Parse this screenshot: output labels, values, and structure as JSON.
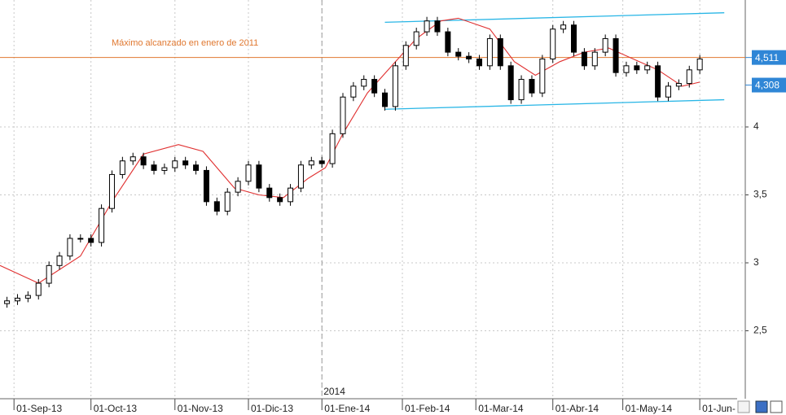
{
  "chart_data": {
    "type": "candlestick",
    "x": [
      2,
      5,
      8,
      11,
      14,
      17,
      20,
      23,
      26,
      29,
      32,
      35,
      38,
      41,
      44,
      47,
      50,
      53,
      56,
      59,
      62,
      65,
      68,
      71,
      74,
      77,
      80,
      83,
      86,
      89,
      92,
      95,
      98,
      101,
      104,
      107,
      110,
      113,
      116,
      119,
      122,
      125,
      128,
      131,
      134,
      137,
      140,
      143,
      146,
      149,
      152,
      155,
      158,
      161,
      164,
      167,
      170,
      173,
      176,
      179,
      182,
      185,
      188,
      191,
      194,
      197,
      200
    ],
    "open": [
      2.7,
      2.72,
      2.74,
      2.76,
      2.85,
      2.98,
      3.05,
      3.18,
      3.18,
      3.15,
      3.4,
      3.65,
      3.75,
      3.78,
      3.72,
      3.68,
      3.7,
      3.75,
      3.72,
      3.68,
      3.45,
      3.38,
      3.52,
      3.6,
      3.72,
      3.55,
      3.48,
      3.45,
      3.55,
      3.72,
      3.75,
      3.73,
      3.95,
      4.22,
      4.3,
      4.35,
      4.25,
      4.15,
      4.45,
      4.6,
      4.7,
      4.78,
      4.7,
      4.55,
      4.52,
      4.5,
      4.45,
      4.65,
      4.45,
      4.2,
      4.35,
      4.25,
      4.5,
      4.72,
      4.75,
      4.55,
      4.45,
      4.55,
      4.65,
      4.4,
      4.45,
      4.42,
      4.45,
      4.22,
      4.3,
      4.32,
      4.42
    ],
    "high": [
      2.75,
      2.77,
      2.79,
      2.88,
      3.01,
      3.08,
      3.21,
      3.21,
      3.21,
      3.43,
      3.68,
      3.78,
      3.81,
      3.81,
      3.75,
      3.73,
      3.78,
      3.78,
      3.75,
      3.71,
      3.48,
      3.55,
      3.63,
      3.75,
      3.75,
      3.58,
      3.51,
      3.58,
      3.75,
      3.78,
      3.78,
      3.98,
      4.25,
      4.33,
      4.38,
      4.38,
      4.28,
      4.48,
      4.63,
      4.73,
      4.81,
      4.81,
      4.73,
      4.58,
      4.55,
      4.53,
      4.68,
      4.68,
      4.48,
      4.38,
      4.38,
      4.53,
      4.75,
      4.78,
      4.78,
      4.58,
      4.58,
      4.68,
      4.68,
      4.48,
      4.48,
      4.48,
      4.48,
      4.33,
      4.35,
      4.45,
      4.53
    ],
    "low": [
      2.67,
      2.69,
      2.71,
      2.73,
      2.82,
      2.95,
      3.02,
      3.15,
      3.12,
      3.12,
      3.37,
      3.62,
      3.72,
      3.69,
      3.65,
      3.65,
      3.67,
      3.69,
      3.65,
      3.42,
      3.35,
      3.35,
      3.49,
      3.57,
      3.52,
      3.45,
      3.42,
      3.42,
      3.52,
      3.69,
      3.7,
      3.7,
      3.92,
      4.19,
      4.27,
      4.22,
      4.12,
      4.12,
      4.42,
      4.57,
      4.67,
      4.67,
      4.52,
      4.49,
      4.47,
      4.42,
      4.42,
      4.42,
      4.17,
      4.17,
      4.22,
      4.22,
      4.47,
      4.69,
      4.52,
      4.42,
      4.42,
      4.52,
      4.37,
      4.37,
      4.39,
      4.39,
      4.19,
      4.19,
      4.27,
      4.29,
      4.39
    ],
    "close": [
      2.72,
      2.74,
      2.76,
      2.85,
      2.98,
      3.05,
      3.18,
      3.18,
      3.15,
      3.4,
      3.65,
      3.75,
      3.78,
      3.72,
      3.68,
      3.7,
      3.75,
      3.72,
      3.68,
      3.45,
      3.38,
      3.52,
      3.6,
      3.72,
      3.55,
      3.48,
      3.45,
      3.55,
      3.72,
      3.75,
      3.73,
      3.95,
      4.22,
      4.3,
      4.35,
      4.25,
      4.15,
      4.45,
      4.6,
      4.7,
      4.78,
      4.7,
      4.55,
      4.52,
      4.5,
      4.45,
      4.65,
      4.45,
      4.2,
      4.35,
      4.25,
      4.5,
      4.72,
      4.75,
      4.55,
      4.45,
      4.55,
      4.65,
      4.4,
      4.45,
      4.42,
      4.45,
      4.22,
      4.3,
      4.32,
      4.42,
      4.5
    ],
    "xlim": [
      0,
      213
    ],
    "ylim": [
      2,
      4.934
    ],
    "xticks": [
      {
        "value": 4,
        "label": "01-Sep-13"
      },
      {
        "value": 26,
        "label": "01-Oct-13"
      },
      {
        "value": 50,
        "label": "01-Nov-13"
      },
      {
        "value": 71,
        "label": "01-Dic-13"
      },
      {
        "value": 92,
        "label": "01-Ene-14"
      },
      {
        "value": 115,
        "label": "01-Feb-14"
      },
      {
        "value": 136,
        "label": "01-Mar-14"
      },
      {
        "value": 158,
        "label": "01-Abr-14"
      },
      {
        "value": 178,
        "label": "01-May-14"
      },
      {
        "value": 200,
        "label": "01-Jun-"
      }
    ],
    "yticks": [
      {
        "value": 2.5,
        "label": "2,5"
      },
      3,
      {
        "value": 3.5,
        "label": "3,5"
      },
      4
    ],
    "grid": true,
    "moving_average": {
      "color": "#e03030",
      "x": [
        0,
        11,
        23,
        32,
        41,
        51,
        58,
        67,
        74,
        81,
        88,
        93,
        98,
        105,
        112,
        119,
        126,
        131,
        140,
        147,
        153,
        160,
        167,
        174,
        181,
        188,
        195,
        200
      ],
      "values": [
        2.98,
        2.85,
        3.05,
        3.45,
        3.8,
        3.87,
        3.82,
        3.55,
        3.5,
        3.48,
        3.62,
        3.7,
        3.95,
        4.25,
        4.45,
        4.65,
        4.78,
        4.8,
        4.72,
        4.48,
        4.38,
        4.48,
        4.55,
        4.58,
        4.5,
        4.42,
        4.3,
        4.33
      ]
    },
    "reference_line": {
      "value": 4.511,
      "label": "Máximo alcanzado en enero de 2011",
      "color": "#e07830"
    },
    "channel": {
      "color": "#29b6e6",
      "lines": [
        {
          "x": [
            110,
            207
          ],
          "values": [
            4.77,
            4.84
          ]
        },
        {
          "x": [
            110,
            207
          ],
          "values": [
            4.13,
            4.2
          ]
        }
      ]
    },
    "price_labels": [
      {
        "value": 4.511,
        "label": "4,511"
      },
      {
        "value": 4.308,
        "label": "4,308"
      }
    ],
    "year_marker": {
      "value": 92,
      "label": "2014"
    }
  }
}
